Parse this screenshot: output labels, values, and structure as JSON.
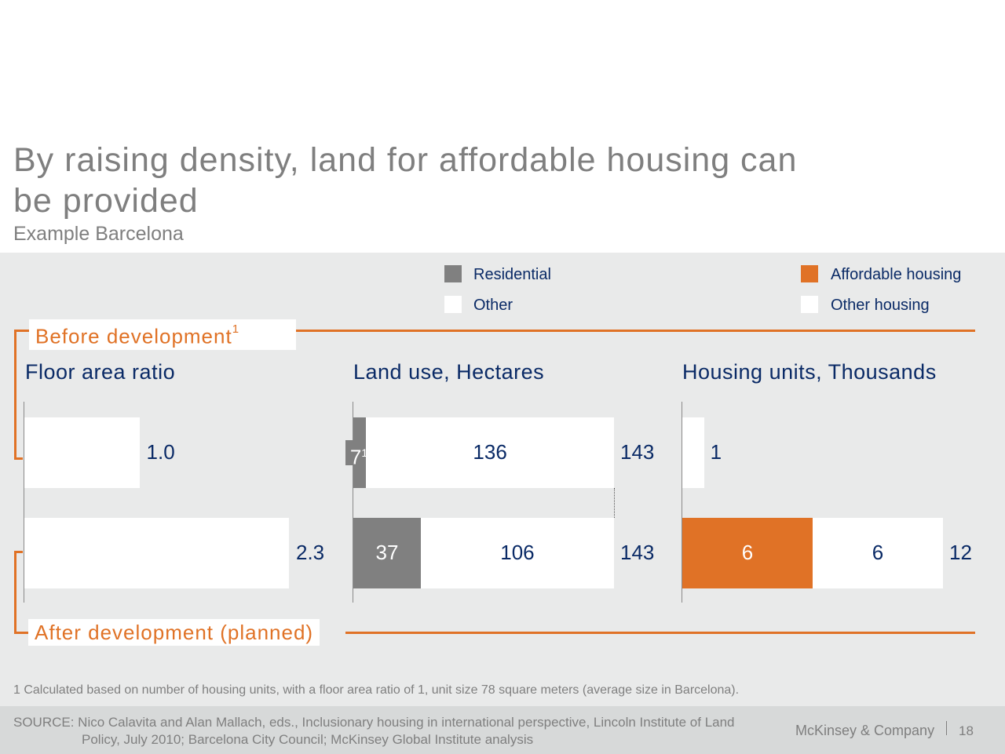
{
  "header": {
    "title": "By raising density, land for affordable housing can be provided",
    "subtitle": "Example Barcelona"
  },
  "legend_left": [
    {
      "label": "Residential",
      "color": "#808080"
    },
    {
      "label": "Other",
      "color": "#ffffff"
    }
  ],
  "legend_right": [
    {
      "label": "Affordable housing",
      "color": "#e07226"
    },
    {
      "label": "Other housing",
      "color": "#ffffff"
    }
  ],
  "sections": {
    "before": {
      "label": "Before development",
      "sup": "1"
    },
    "after": {
      "label": "After development (planned)"
    }
  },
  "chart_data": [
    {
      "type": "bar",
      "orientation": "horizontal",
      "title": "Floor area ratio",
      "categories": [
        "Before development",
        "After development (planned)"
      ],
      "values": [
        1.0,
        2.3
      ],
      "labels": [
        "1.0",
        "2.3"
      ],
      "xlim": [
        0,
        2.3
      ]
    },
    {
      "type": "bar",
      "orientation": "horizontal",
      "stacked": true,
      "title": "Land use, Hectares",
      "categories": [
        "Before development",
        "After development (planned)"
      ],
      "series": [
        {
          "name": "Residential",
          "values": [
            7,
            37
          ],
          "labels": [
            "7",
            "37"
          ],
          "label_sup": [
            "1",
            ""
          ]
        },
        {
          "name": "Other",
          "values": [
            136,
            106
          ],
          "labels": [
            "136",
            "106"
          ]
        }
      ],
      "totals": [
        "143",
        "143"
      ],
      "xlim": [
        0,
        143
      ]
    },
    {
      "type": "bar",
      "orientation": "horizontal",
      "stacked": true,
      "title": "Housing units, Thousands",
      "categories": [
        "Before development",
        "After development (planned)"
      ],
      "series": [
        {
          "name": "Affordable housing",
          "values": [
            0,
            6
          ],
          "labels": [
            "",
            "6"
          ]
        },
        {
          "name": "Other housing",
          "values": [
            1,
            6
          ],
          "labels": [
            "",
            "6"
          ]
        }
      ],
      "totals": [
        "1",
        "12"
      ],
      "xlim": [
        0,
        12
      ]
    }
  ],
  "footnote": "1 Calculated based on number of housing units, with a floor area ratio of 1, unit size 78 square meters (average size in Barcelona).",
  "source": {
    "line1": "SOURCE: Nico Calavita and Alan Mallach, eds., Inclusionary housing in international perspective, Lincoln Institute of Land",
    "line2": "Policy, July 2010; Barcelona City Council; McKinsey Global Institute analysis"
  },
  "brand": "McKinsey & Company",
  "page_number": "18"
}
